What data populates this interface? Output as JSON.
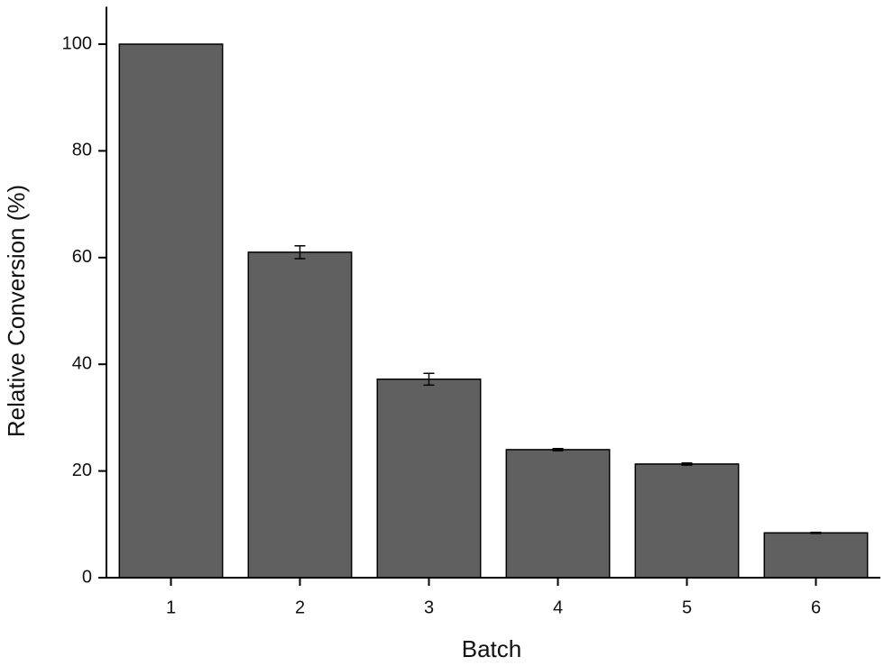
{
  "chart_data": {
    "type": "bar",
    "x_label": "Batch",
    "y_label": "Relative Conversion (%)",
    "categories": [
      "1",
      "2",
      "3",
      "4",
      "5",
      "6"
    ],
    "values": [
      100,
      61,
      37.2,
      24,
      21.3,
      8.4
    ],
    "errors": [
      0,
      1.2,
      1.1,
      0.2,
      0.2,
      0.1
    ],
    "color": "#606060",
    "ylim": [
      0,
      107
    ],
    "yticks": [
      0,
      20,
      40,
      60,
      80,
      100
    ]
  }
}
